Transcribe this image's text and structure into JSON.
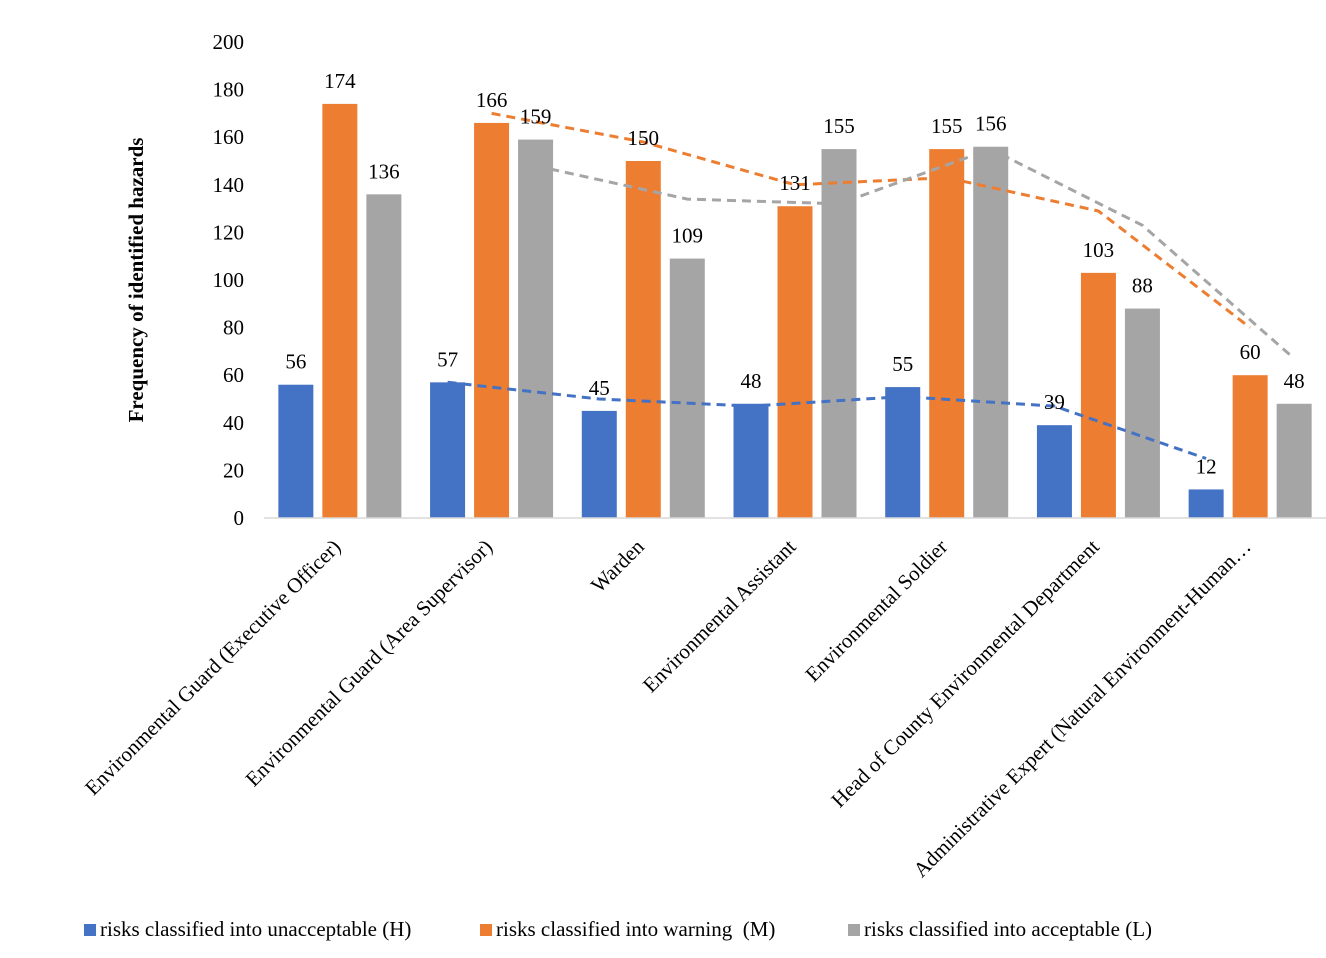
{
  "chart_data": {
    "type": "bar",
    "ylabel": "Frequency of identified hazards",
    "xlabel": "",
    "ylim": [
      0,
      200
    ],
    "yticks": [
      0,
      20,
      40,
      60,
      80,
      100,
      120,
      140,
      160,
      180,
      200
    ],
    "grid": false,
    "legend_position": "bottom",
    "categories": [
      "Environmental Guard (Executive Officer)",
      "Environmental Guard (Area Supervisor)",
      "Warden",
      "Environmental Assistant",
      "Environmental Soldier",
      "Head of County Environmental Department",
      "Administrative Expert (Natural Environment-Human…"
    ],
    "series": [
      {
        "name": "risks classified into unacceptable (H)",
        "color": "#4472C4",
        "values": [
          56,
          57,
          45,
          48,
          55,
          39,
          12
        ]
      },
      {
        "name": "risks classified into warning  (M)",
        "color": "#ED7D31",
        "values": [
          174,
          166,
          150,
          131,
          155,
          103,
          60
        ]
      },
      {
        "name": "risks classified into acceptable (L)",
        "color": "#A5A5A5",
        "values": [
          136,
          159,
          109,
          155,
          156,
          88,
          48
        ]
      }
    ],
    "trendlines": [
      {
        "series": "risks classified into unacceptable (H)",
        "style": "dashed",
        "points": [
          [
            1,
            57
          ],
          [
            2,
            50
          ],
          [
            3,
            47
          ],
          [
            4,
            51
          ],
          [
            5,
            47
          ],
          [
            6,
            25
          ]
        ]
      },
      {
        "series": "risks classified into warning  (M)",
        "style": "dashed",
        "points": [
          [
            1,
            170
          ],
          [
            2,
            158
          ],
          [
            3,
            140
          ],
          [
            4,
            143
          ],
          [
            5,
            129
          ],
          [
            6,
            80
          ]
        ]
      },
      {
        "series": "risks classified into acceptable (L)",
        "style": "dashed",
        "points": [
          [
            1,
            148
          ],
          [
            2,
            134
          ],
          [
            3,
            132
          ],
          [
            4,
            155
          ],
          [
            5,
            123
          ],
          [
            6,
            67
          ]
        ]
      }
    ]
  }
}
